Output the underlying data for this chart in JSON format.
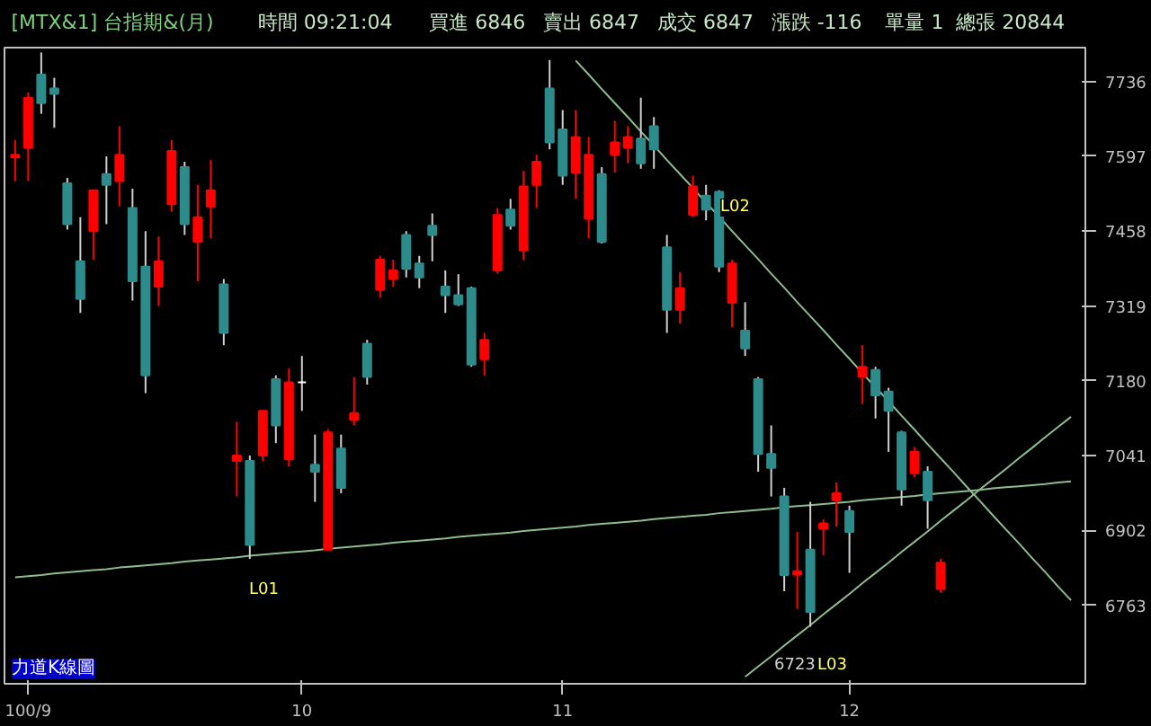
{
  "chart_data": {
    "type": "candlestick",
    "title": "[MTX&1] 台指期&(月)",
    "subtitle": "力道K線圖",
    "annotations": [
      "時間 09:21:04",
      "買進 6846",
      "賣出 6847",
      "成交 6847",
      "漲跌 -116",
      "單量 1",
      "總張 20844",
      "L01",
      "L02",
      "6723",
      "L03"
    ],
    "categories": [
      null,
      "100/9",
      null,
      null,
      null,
      null,
      null,
      null,
      null,
      null,
      null,
      null,
      null,
      null,
      null,
      null,
      null,
      null,
      null,
      null,
      null,
      null,
      "10",
      null,
      null,
      null,
      null,
      null,
      null,
      null,
      null,
      null,
      null,
      null,
      null,
      null,
      null,
      null,
      null,
      null,
      null,
      null,
      "11",
      null,
      null,
      null,
      null,
      null,
      null,
      null,
      null,
      null,
      null,
      null,
      null,
      null,
      null,
      null,
      null,
      null,
      null,
      null,
      null,
      null,
      "12",
      null,
      null,
      null,
      null,
      null,
      null,
      null,
      null,
      null,
      null,
      null,
      null,
      null,
      null,
      null,
      null,
      null
    ],
    "ohlc": [
      [
        7595,
        7627,
        7551,
        7600
      ],
      [
        7613,
        7716,
        7551,
        7706
      ],
      [
        7749,
        7790,
        7676,
        7696
      ],
      [
        7723,
        7743,
        7650,
        7713
      ],
      [
        7547,
        7557,
        7461,
        7471
      ],
      [
        7402,
        7484,
        7306,
        7332
      ],
      [
        7458,
        7534,
        7405,
        7534
      ],
      [
        7564,
        7597,
        7471,
        7544
      ],
      [
        7551,
        7653,
        7504,
        7600
      ],
      [
        7501,
        7537,
        7329,
        7365
      ],
      [
        7392,
        7458,
        7157,
        7190
      ],
      [
        7355,
        7448,
        7319,
        7402
      ],
      [
        7508,
        7627,
        7494,
        7607
      ],
      [
        7577,
        7587,
        7451,
        7471
      ],
      [
        7438,
        7544,
        7365,
        7484
      ],
      [
        7504,
        7590,
        7445,
        7534
      ],
      [
        7359,
        7369,
        7246,
        7269
      ],
      [
        7031,
        7104,
        6965,
        7041
      ],
      [
        7031,
        7041,
        6849,
        6875
      ],
      [
        7041,
        7124,
        7031,
        7124
      ],
      [
        7183,
        7190,
        7064,
        7097
      ],
      [
        7034,
        7203,
        7021,
        7177
      ],
      [
        7177,
        7226,
        7124,
        7177
      ],
      [
        7024,
        7080,
        6955,
        7011
      ],
      [
        6866,
        7090,
        6866,
        7084
      ],
      [
        7054,
        7080,
        6971,
        6981
      ],
      [
        7107,
        7187,
        7097,
        7120
      ],
      [
        7249,
        7256,
        7173,
        7187
      ],
      [
        7349,
        7412,
        7335,
        7405
      ],
      [
        7369,
        7405,
        7355,
        7385
      ],
      [
        7451,
        7458,
        7372,
        7388
      ],
      [
        7398,
        7412,
        7352,
        7372
      ],
      [
        7468,
        7491,
        7402,
        7451
      ],
      [
        7355,
        7385,
        7306,
        7339
      ],
      [
        7339,
        7378,
        7319,
        7322
      ],
      [
        7352,
        7355,
        7206,
        7210
      ],
      [
        7220,
        7269,
        7190,
        7256
      ],
      [
        7385,
        7501,
        7379,
        7488
      ],
      [
        7498,
        7518,
        7461,
        7468
      ],
      [
        7422,
        7570,
        7405,
        7541
      ],
      [
        7544,
        7600,
        7501,
        7587
      ],
      [
        7723,
        7776,
        7610,
        7623
      ],
      [
        7647,
        7683,
        7544,
        7561
      ],
      [
        7567,
        7683,
        7518,
        7633
      ],
      [
        7481,
        7633,
        7445,
        7600
      ],
      [
        7564,
        7577,
        7435,
        7438
      ],
      [
        7600,
        7663,
        7567,
        7623
      ],
      [
        7613,
        7653,
        7584,
        7633
      ],
      [
        7630,
        7706,
        7574,
        7584
      ],
      [
        7653,
        7670,
        7574,
        7610
      ],
      [
        7428,
        7451,
        7269,
        7312
      ],
      [
        7312,
        7382,
        7286,
        7352
      ],
      [
        7488,
        7561,
        7484,
        7541
      ],
      [
        7524,
        7544,
        7478,
        7498
      ],
      [
        7531,
        7534,
        7382,
        7392
      ],
      [
        7325,
        7405,
        7279,
        7398
      ],
      [
        7273,
        7326,
        7226,
        7240
      ],
      [
        7183,
        7187,
        7011,
        7044
      ],
      [
        7044,
        7097,
        6965,
        7018
      ],
      [
        6965,
        6981,
        6789,
        6819
      ],
      [
        6820,
        6899,
        6756,
        6826
      ],
      [
        6866,
        6955,
        6723,
        6750
      ],
      [
        6905,
        6922,
        6856,
        6915
      ],
      [
        6958,
        6991,
        6909,
        6971
      ],
      [
        6938,
        6948,
        6823,
        6899
      ],
      [
        7187,
        7246,
        7137,
        7206
      ],
      [
        7200,
        7206,
        7110,
        7153
      ],
      [
        7160,
        7167,
        7048,
        7124
      ],
      [
        7084,
        7087,
        6948,
        6978
      ],
      [
        7008,
        7057,
        7001,
        7048
      ],
      [
        7011,
        7021,
        6905,
        6958
      ],
      [
        6793,
        6849,
        6786,
        6842
      ],
      null,
      null,
      null,
      null,
      null,
      null,
      null,
      null,
      null,
      null
    ],
    "colors": [
      "#ff0000",
      "#ff0000",
      "#2e8b8b",
      "#2e8b8b",
      "#2e8b8b",
      "#2e8b8b",
      "#ff0000",
      "#2e8b8b",
      "#ff0000",
      "#2e8b8b",
      "#2e8b8b",
      "#ff0000",
      "#ff0000",
      "#2e8b8b",
      "#ff0000",
      "#ff0000",
      "#2e8b8b",
      "#ff0000",
      "#2e8b8b",
      "#ff0000",
      "#2e8b8b",
      "#ff0000",
      "#ffffff",
      "#2e8b8b",
      "#ff0000",
      "#2e8b8b",
      "#ff0000",
      "#2e8b8b",
      "#ff0000",
      "#ff0000",
      "#2e8b8b",
      "#2e8b8b",
      "#2e8b8b",
      "#2e8b8b",
      "#2e8b8b",
      "#2e8b8b",
      "#ff0000",
      "#ff0000",
      "#2e8b8b",
      "#ff0000",
      "#ff0000",
      "#2e8b8b",
      "#2e8b8b",
      "#ff0000",
      "#ff0000",
      "#2e8b8b",
      "#ff0000",
      "#ff0000",
      "#2e8b8b",
      "#2e8b8b",
      "#2e8b8b",
      "#ff0000",
      "#ff0000",
      "#2e8b8b",
      "#2e8b8b",
      "#ff0000",
      "#2e8b8b",
      "#2e8b8b",
      "#2e8b8b",
      "#2e8b8b",
      "#ff0000",
      "#2e8b8b",
      "#ff0000",
      "#ff0000",
      "#2e8b8b",
      "#ff0000",
      "#2e8b8b",
      "#2e8b8b",
      "#2e8b8b",
      "#ff0000",
      "#2e8b8b",
      "#ff0000",
      null,
      null,
      null,
      null,
      null,
      null,
      null,
      null,
      null,
      null
    ],
    "series": [
      {
        "type": "line",
        "color": "#8fbc8f",
        "values": [
          6815,
          6817,
          6819,
          6822,
          6824,
          6826,
          6828,
          6830,
          6833,
          6835,
          6837,
          6839,
          6841,
          6844,
          6846,
          6848,
          6850,
          6852,
          6855,
          6857,
          6859,
          6861,
          6863,
          6865,
          6868,
          6870,
          6872,
          6874,
          6876,
          6879,
          6881,
          6883,
          6885,
          6887,
          6890,
          6892,
          6894,
          6896,
          6898,
          6901,
          6903,
          6905,
          6907,
          6909,
          6912,
          6914,
          6916,
          6918,
          6920,
          6923,
          6925,
          6927,
          6929,
          6931,
          6934,
          6936,
          6938,
          6940,
          6942,
          6945,
          6947,
          6949,
          6951,
          6953,
          6955,
          6958,
          6960,
          6962,
          6964,
          6966,
          6969,
          6971,
          6973,
          6975,
          6977,
          6980,
          6982,
          6984,
          6986,
          6988,
          6991,
          6993
        ]
      },
      {
        "type": "line",
        "color": "#8fbc8f",
        "values": [
          null,
          null,
          null,
          null,
          null,
          null,
          null,
          null,
          null,
          null,
          null,
          null,
          null,
          null,
          null,
          null,
          null,
          null,
          null,
          null,
          null,
          null,
          null,
          null,
          null,
          null,
          null,
          null,
          null,
          null,
          null,
          null,
          null,
          null,
          null,
          null,
          null,
          null,
          null,
          null,
          null,
          null,
          null,
          7775,
          7749,
          7722,
          7696,
          7670,
          7643,
          7617,
          7590,
          7564,
          7538,
          7511,
          7485,
          7458,
          7432,
          7406,
          7379,
          7353,
          7326,
          7300,
          7274,
          7247,
          7221,
          7194,
          7168,
          7142,
          7115,
          7089,
          7062,
          7036,
          7010,
          6983,
          6957,
          6930,
          6904,
          6878,
          6851,
          6825,
          6798,
          6772
        ]
      },
      {
        "type": "line",
        "color": "#8fbc8f",
        "values": [
          null,
          null,
          null,
          null,
          null,
          null,
          null,
          null,
          null,
          null,
          null,
          null,
          null,
          null,
          null,
          null,
          null,
          null,
          null,
          null,
          null,
          null,
          null,
          null,
          null,
          null,
          null,
          null,
          null,
          null,
          null,
          null,
          null,
          null,
          null,
          null,
          null,
          null,
          null,
          null,
          null,
          null,
          null,
          null,
          null,
          null,
          null,
          null,
          null,
          null,
          null,
          null,
          null,
          null,
          null,
          null,
          6630,
          6649,
          6668,
          6688,
          6707,
          6726,
          6746,
          6765,
          6784,
          6804,
          6823,
          6842,
          6862,
          6881,
          6900,
          6920,
          6939,
          6958,
          6978,
          6997,
          7016,
          7036,
          7055,
          7075,
          7094,
          7113
        ]
      }
    ],
    "ylim": [
      6617,
      7799
    ],
    "yticks": [
      6763,
      6902,
      7041,
      7180,
      7319,
      7458,
      7597,
      7736
    ],
    "grid": false
  }
}
